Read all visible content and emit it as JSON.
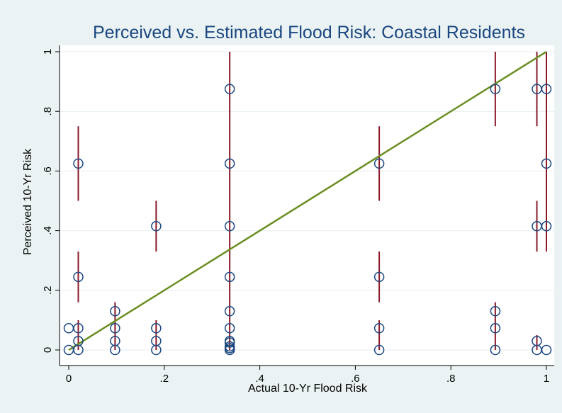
{
  "chart_data": {
    "type": "scatter",
    "title": "Perceived vs. Estimated Flood Risk: Coastal Residents",
    "xlabel": "Actual 10-Yr Flood Risk",
    "ylabel": "Perceived 10-Yr Risk",
    "xlim": [
      0,
      1
    ],
    "ylim": [
      0,
      1
    ],
    "x_ticks": [
      0,
      0.2,
      0.4,
      0.6,
      0.8,
      1
    ],
    "x_tick_labels": [
      "0",
      ".2",
      ".4",
      ".6",
      ".8",
      "1"
    ],
    "y_ticks": [
      0,
      0.2,
      0.4,
      0.6,
      0.8,
      1
    ],
    "y_tick_labels": [
      "0",
      ".2",
      ".4",
      ".6",
      ".8",
      "1"
    ],
    "grid": "horizontal",
    "points": [
      {
        "x": 0.0,
        "y": 0.0
      },
      {
        "x": 0.0,
        "y": 0.073
      },
      {
        "x": 0.02,
        "y": 0.0
      },
      {
        "x": 0.02,
        "y": 0.03
      },
      {
        "x": 0.02,
        "y": 0.073
      },
      {
        "x": 0.02,
        "y": 0.245
      },
      {
        "x": 0.02,
        "y": 0.625
      },
      {
        "x": 0.097,
        "y": 0.0
      },
      {
        "x": 0.097,
        "y": 0.03
      },
      {
        "x": 0.097,
        "y": 0.073
      },
      {
        "x": 0.097,
        "y": 0.13
      },
      {
        "x": 0.183,
        "y": 0.0
      },
      {
        "x": 0.183,
        "y": 0.03
      },
      {
        "x": 0.183,
        "y": 0.073
      },
      {
        "x": 0.183,
        "y": 0.415
      },
      {
        "x": 0.337,
        "y": 0.0
      },
      {
        "x": 0.337,
        "y": 0.006
      },
      {
        "x": 0.337,
        "y": 0.012
      },
      {
        "x": 0.337,
        "y": 0.025
      },
      {
        "x": 0.337,
        "y": 0.03
      },
      {
        "x": 0.337,
        "y": 0.073
      },
      {
        "x": 0.337,
        "y": 0.13
      },
      {
        "x": 0.337,
        "y": 0.245
      },
      {
        "x": 0.337,
        "y": 0.415
      },
      {
        "x": 0.337,
        "y": 0.625
      },
      {
        "x": 0.337,
        "y": 0.875
      },
      {
        "x": 0.65,
        "y": 0.0
      },
      {
        "x": 0.65,
        "y": 0.073
      },
      {
        "x": 0.65,
        "y": 0.245
      },
      {
        "x": 0.65,
        "y": 0.625
      },
      {
        "x": 0.893,
        "y": 0.0
      },
      {
        "x": 0.893,
        "y": 0.073
      },
      {
        "x": 0.893,
        "y": 0.13
      },
      {
        "x": 0.893,
        "y": 0.875
      },
      {
        "x": 0.98,
        "y": 0.0
      },
      {
        "x": 0.98,
        "y": 0.03
      },
      {
        "x": 0.98,
        "y": 0.415
      },
      {
        "x": 0.98,
        "y": 0.875
      },
      {
        "x": 1.0,
        "y": 0.0
      },
      {
        "x": 1.0,
        "y": 0.415
      },
      {
        "x": 1.0,
        "y": 0.625
      },
      {
        "x": 1.0,
        "y": 0.875
      }
    ],
    "error_bars": [
      {
        "x": 0.02,
        "low": 0.5,
        "high": 0.75
      },
      {
        "x": 0.02,
        "low": 0.16,
        "high": 0.33
      },
      {
        "x": 0.02,
        "low": 0.0,
        "high": 0.1
      },
      {
        "x": 0.097,
        "low": 0.0,
        "high": 0.16
      },
      {
        "x": 0.183,
        "low": 0.33,
        "high": 0.5
      },
      {
        "x": 0.183,
        "low": 0.0,
        "high": 0.1
      },
      {
        "x": 0.337,
        "low": 0.0,
        "high": 1.0
      },
      {
        "x": 0.65,
        "low": 0.5,
        "high": 0.75
      },
      {
        "x": 0.65,
        "low": 0.16,
        "high": 0.33
      },
      {
        "x": 0.65,
        "low": 0.0,
        "high": 0.1
      },
      {
        "x": 0.893,
        "low": 0.75,
        "high": 1.0
      },
      {
        "x": 0.893,
        "low": 0.0,
        "high": 0.16
      },
      {
        "x": 0.98,
        "low": 0.75,
        "high": 1.0
      },
      {
        "x": 0.98,
        "low": 0.33,
        "high": 0.5
      },
      {
        "x": 0.98,
        "low": 0.0,
        "high": 0.05
      },
      {
        "x": 1.0,
        "low": 0.33,
        "high": 1.0
      }
    ],
    "reference_line": {
      "x": [
        0,
        1
      ],
      "y": [
        0,
        1
      ]
    },
    "colors": {
      "background": "#eaf2f3",
      "plot_area": "#ffffff",
      "title": "#1a4780",
      "marker": "#1a4780",
      "error_bar": "#8b1a2b",
      "reference_line": "#6b8e23",
      "grid": "#e6eef0"
    }
  }
}
